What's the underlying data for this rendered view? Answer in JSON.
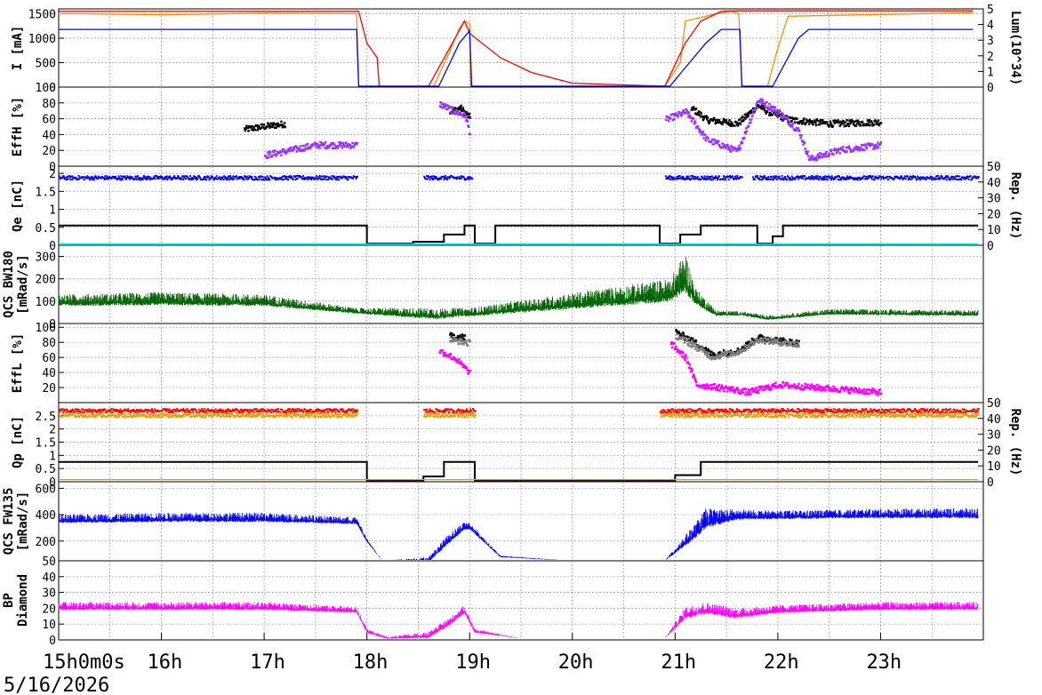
{
  "chart_data": {
    "type": "line",
    "date": "5/16/2026",
    "time_axis": {
      "range_hours": [
        15,
        24
      ],
      "tick_labels": [
        {
          "h": 15,
          "label": "15h0m0s"
        },
        {
          "h": 16,
          "label": "16h"
        },
        {
          "h": 17,
          "label": "17h"
        },
        {
          "h": 18,
          "label": "18h"
        },
        {
          "h": 19,
          "label": "19h"
        },
        {
          "h": 20,
          "label": "20h"
        },
        {
          "h": 21,
          "label": "21h"
        },
        {
          "h": 22,
          "label": "22h"
        },
        {
          "h": 23,
          "label": "23h"
        }
      ]
    },
    "panels": [
      {
        "id": "beam-current",
        "ylabel": "I [mA]",
        "ylim": [
          0,
          1600
        ],
        "ticks": [
          "0",
          "500",
          "1000",
          "1500"
        ],
        "tick_values": [
          0,
          500,
          1000,
          1500
        ],
        "right_label": "Lum(10^34)",
        "right_ylim": [
          0,
          5
        ],
        "right_ticks": [
          "0",
          "1",
          "2",
          "3",
          "4",
          "5"
        ],
        "series": [
          {
            "color": "#ff8c00",
            "style": "line",
            "x": [
              15,
              15.2,
              16,
              17,
              17.9,
              17.92,
              18.15,
              18.65,
              18.8,
              18.9,
              18.95,
              19.0,
              19.01,
              20.0,
              20.9,
              21.05,
              21.1,
              21.4,
              21.55,
              21.62,
              21.65,
              21.9,
              22.0,
              22.1,
              23.9
            ],
            "y": [
              1500,
              1500,
              1480,
              1510,
              1500,
              0,
              0,
              0,
              700,
              1200,
              1350,
              1300,
              0,
              0,
              0,
              500,
              1350,
              1500,
              1550,
              1500,
              0,
              0,
              800,
              1450,
              1520
            ]
          },
          {
            "color": "#ff0000",
            "style": "line",
            "x": [
              15,
              17.92,
              18.0,
              18.1,
              18.12,
              18.6,
              18.95,
              19.0,
              19.3,
              19.6,
              20.0,
              20.9,
              21.1,
              21.25,
              21.45,
              21.6,
              21.7,
              23.9
            ],
            "y": [
              1550,
              1550,
              900,
              600,
              0,
              0,
              1350,
              1100,
              600,
              300,
              80,
              0,
              900,
              1350,
              1550,
              1560,
              1560,
              1560
            ]
          },
          {
            "color": "#0000ff",
            "style": "line",
            "x": [
              15,
              17.9,
              17.92,
              18.7,
              18.9,
              19.0,
              19.02,
              20.95,
              21.1,
              21.3,
              21.45,
              21.55,
              21.63,
              21.65,
              21.95,
              22.2,
              22.3,
              23.9
            ],
            "y": [
              1180,
              1180,
              0,
              0,
              900,
              1150,
              0,
              0,
              400,
              900,
              1180,
              1180,
              1180,
              0,
              0,
              1000,
              1180,
              1180
            ]
          }
        ]
      },
      {
        "id": "eff-h",
        "ylabel": "EffH [%]",
        "ylim": [
          0,
          100
        ],
        "ticks": [
          "0",
          "20",
          "40",
          "60",
          "80",
          "100"
        ],
        "tick_values": [
          0,
          20,
          40,
          60,
          80,
          100
        ],
        "series": [
          {
            "color": "#000000",
            "style": "dots",
            "x": [
              15,
              16,
              16.8,
              17.2,
              17.9,
              18.8,
              18.9,
              19.0,
              21.15,
              21.3,
              21.6,
              21.8,
              21.9,
              22.1,
              22.5,
              23,
              23.9
            ],
            "y": [
              42,
              45,
              48,
              55,
              58,
              70,
              75,
              62,
              75,
              60,
              55,
              78,
              70,
              60,
              55,
              57,
              58
            ]
          },
          {
            "color": "#9933ff",
            "style": "dots",
            "x": [
              15,
              16,
              17,
              17.5,
              17.9,
              18.7,
              18.85,
              18.95,
              19.0,
              20.9,
              21.1,
              21.3,
              21.5,
              21.6,
              21.8,
              22.0,
              22.2,
              22.3,
              22.6,
              23,
              23.9
            ],
            "y": [
              15,
              14,
              15,
              28,
              28,
              80,
              70,
              65,
              40,
              60,
              70,
              35,
              25,
              20,
              85,
              70,
              45,
              10,
              22,
              28,
              30
            ]
          }
        ]
      },
      {
        "id": "qe",
        "ylabel": "Qe [nC]",
        "ylim": [
          0,
          2.2
        ],
        "ticks": [
          "0",
          "0.5",
          "1",
          "1.5",
          "2"
        ],
        "tick_values": [
          0,
          0.5,
          1,
          1.5,
          2
        ],
        "right_label": "Rep. (Hz)",
        "right_ylim": [
          0,
          50
        ],
        "right_ticks": [
          "0",
          "10",
          "20",
          "30",
          "40",
          "50"
        ],
        "series": [
          {
            "color": "#0000ff",
            "style": "band",
            "segments": [
              [
                15,
                17.9
              ],
              [
                18.55,
                19.02
              ],
              [
                20.9,
                21.65
              ],
              [
                21.75,
                23.95
              ]
            ],
            "y": 1.9
          },
          {
            "color": "#000000",
            "style": "step",
            "x": [
              15,
              18.0,
              18.0,
              18.45,
              18.45,
              18.75,
              18.75,
              18.95,
              18.95,
              19.05,
              19.05,
              19.25,
              19.25,
              20.85,
              20.85,
              21.05,
              21.05,
              21.25,
              21.25,
              21.8,
              21.8,
              21.95,
              21.95,
              22.05,
              22.05,
              23.95
            ],
            "y": [
              0.55,
              0.55,
              0.05,
              0.05,
              0.1,
              0.1,
              0.3,
              0.3,
              0.55,
              0.55,
              0.05,
              0.05,
              0.55,
              0.55,
              0.05,
              0.05,
              0.3,
              0.3,
              0.55,
              0.55,
              0.05,
              0.05,
              0.25,
              0.25,
              0.55,
              0.55
            ]
          },
          {
            "color": "#00dddd",
            "style": "line",
            "x": [
              15,
              23.95
            ],
            "y": [
              0.04,
              0.04
            ]
          }
        ]
      },
      {
        "id": "qcs-bw180",
        "ylabel": "QCS BW180 [mRad/s]",
        "ylim": [
          0,
          350
        ],
        "ticks": [
          "0",
          "100",
          "200",
          "300"
        ],
        "tick_values": [
          0,
          100,
          200,
          300
        ],
        "series": [
          {
            "color": "#006400",
            "style": "noise",
            "x": [
              15,
              16,
              17,
              17.9,
              18.7,
              18.9,
              19.0,
              20.95,
              21.1,
              21.2,
              21.4,
              21.65,
              21.9,
              22.5,
              23.95
            ],
            "y": [
              90,
              95,
              90,
              50,
              30,
              40,
              40,
              120,
              180,
              100,
              40,
              40,
              20,
              45,
              40
            ],
            "amp": [
              40,
              45,
              40,
              20,
              40,
              30,
              30,
              80,
              140,
              60,
              20,
              15,
              15,
              20,
              20
            ]
          }
        ]
      },
      {
        "id": "eff-l",
        "ylabel": "EffL [%]",
        "ylim": [
          0,
          105
        ],
        "ticks": [
          "20",
          "40",
          "60",
          "80",
          "100"
        ],
        "tick_values": [
          20,
          40,
          60,
          80,
          100
        ],
        "series": [
          {
            "color": "#000000",
            "style": "dots",
            "x": [
              15,
              16,
              17,
              17.9,
              18.8,
              18.95,
              21.0,
              21.2,
              21.35,
              21.6,
              21.8,
              22.2,
              23,
              23.9
            ],
            "y": [
              75,
              75,
              76,
              80,
              90,
              88,
              95,
              80,
              65,
              70,
              88,
              80,
              72,
              74
            ]
          },
          {
            "color": "#808080",
            "style": "dots",
            "x": [
              15,
              16,
              17,
              17.9,
              18.8,
              19.0,
              21.0,
              21.2,
              21.35,
              21.6,
              21.8,
              22.2,
              23,
              23.9
            ],
            "y": [
              72,
              73,
              74,
              76,
              85,
              80,
              90,
              75,
              62,
              68,
              85,
              78,
              70,
              72
            ]
          },
          {
            "color": "#ff00ff",
            "style": "dots",
            "x": [
              15,
              16,
              17,
              17.9,
              18.7,
              18.85,
              19.0,
              20.95,
              21.1,
              21.2,
              21.5,
              21.7,
              22,
              22.5,
              23,
              23.9
            ],
            "y": [
              20,
              20,
              20,
              22,
              70,
              60,
              40,
              80,
              60,
              25,
              20,
              15,
              25,
              20,
              15,
              15
            ]
          }
        ]
      },
      {
        "id": "qp",
        "ylabel": "Qp [nC]",
        "ylim": [
          0,
          3.0
        ],
        "ticks": [
          "0",
          "0.5",
          "1",
          "1.5",
          "2",
          "2.5"
        ],
        "tick_values": [
          0,
          0.5,
          1,
          1.5,
          2,
          2.5
        ],
        "right_label": "Rep. (Hz)",
        "right_ylim": [
          0,
          50
        ],
        "right_ticks": [
          "0",
          "10",
          "20",
          "30",
          "40",
          "50"
        ],
        "series": [
          {
            "color": "#ff0000",
            "style": "band",
            "segments": [
              [
                15,
                17.9
              ],
              [
                18.55,
                19.05
              ],
              [
                20.85,
                23.95
              ]
            ],
            "y": 2.72
          },
          {
            "color": "#e6a000",
            "style": "band",
            "segments": [
              [
                15,
                17.9
              ],
              [
                18.55,
                19.05
              ],
              [
                20.85,
                23.95
              ]
            ],
            "y": 2.55
          },
          {
            "color": "#000000",
            "style": "step",
            "x": [
              15,
              18.0,
              18.0,
              18.55,
              18.55,
              18.75,
              18.75,
              19.05,
              19.05,
              21.0,
              21.0,
              21.25,
              21.25,
              23.95
            ],
            "y": [
              0.75,
              0.75,
              0.02,
              0.02,
              0.2,
              0.2,
              0.75,
              0.75,
              0.02,
              0.02,
              0.25,
              0.25,
              0.75,
              0.75
            ]
          },
          {
            "color": "#e6a000",
            "style": "line",
            "x": [
              15,
              23.95
            ],
            "y": [
              0.08,
              0.08
            ]
          }
        ]
      },
      {
        "id": "qcs-fw135",
        "ylabel": "QCS FW135 [mRad/s]",
        "ylim": [
          50,
          650
        ],
        "ticks": [
          "50",
          "200",
          "400",
          "600"
        ],
        "tick_values": [
          50,
          200,
          400,
          600
        ],
        "series": [
          {
            "color": "#0000ff",
            "style": "noise",
            "x": [
              15,
              16,
              17,
              17.9,
              18.0,
              18.15,
              18.6,
              18.8,
              18.95,
              19.0,
              19.3,
              20.0,
              20.9,
              21.05,
              21.2,
              21.3,
              21.6,
              22,
              23,
              23.95
            ],
            "y": [
              350,
              360,
              360,
              340,
              200,
              50,
              50,
              200,
              300,
              300,
              80,
              50,
              50,
              150,
              250,
              330,
              380,
              380,
              390,
              390
            ],
            "amp": [
              50,
              55,
              55,
              40,
              20,
              0,
              30,
              60,
              50,
              40,
              10,
              0,
              0,
              50,
              90,
              120,
              60,
              50,
              55,
              60
            ]
          }
        ]
      },
      {
        "id": "bp-diamond",
        "ylabel": "BP Diamond",
        "ylim": [
          0,
          50
        ],
        "ticks": [
          "0",
          "10",
          "20",
          "30",
          "40"
        ],
        "tick_values": [
          0,
          10,
          20,
          30,
          40
        ],
        "series": [
          {
            "color": "#ff00ff",
            "style": "noise",
            "x": [
              15,
              16,
              17,
              17.9,
              18.0,
              18.2,
              18.6,
              18.8,
              18.95,
              19.05,
              19.5,
              20.9,
              21.1,
              21.3,
              21.6,
              22,
              23,
              23.95
            ],
            "y": [
              20,
              20,
              20,
              18,
              5,
              1,
              2,
              10,
              18,
              5,
              1,
              1,
              15,
              18,
              15,
              18,
              20,
              20
            ],
            "amp": [
              4,
              4,
              4,
              3,
              2,
              1,
              3,
              4,
              4,
              2,
              0,
              0,
              6,
              6,
              5,
              4,
              4,
              4
            ]
          }
        ]
      }
    ]
  }
}
